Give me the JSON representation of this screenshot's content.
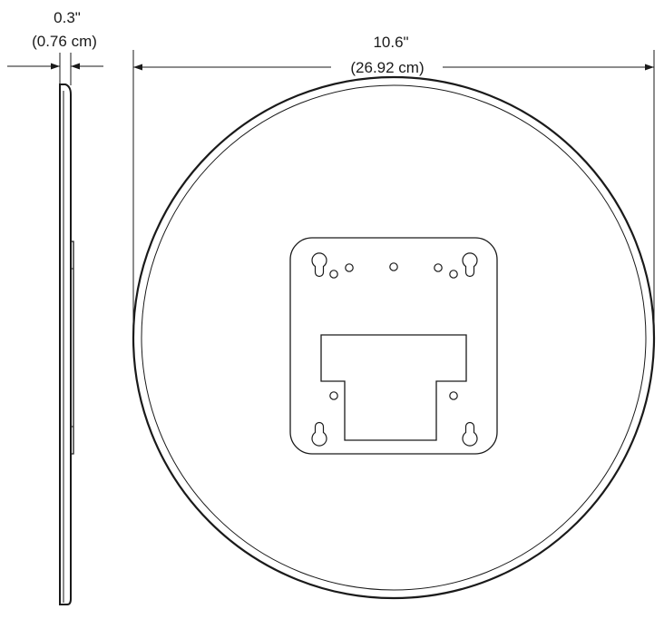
{
  "side_view": {
    "thickness_in": "0.3\"",
    "thickness_cm": "(0.76 cm)"
  },
  "front_view": {
    "diameter_in": "10.6\"",
    "diameter_cm": "(26.92 cm)"
  },
  "colors": {
    "line": "#1a1a1a",
    "background": "#ffffff"
  }
}
